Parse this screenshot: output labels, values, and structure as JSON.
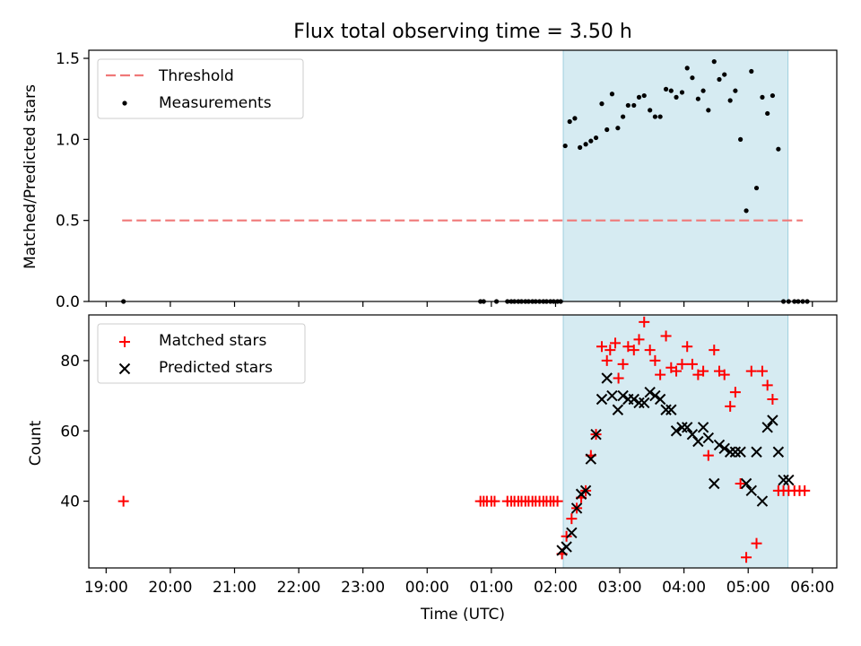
{
  "chart_data": [
    {
      "type": "scatter",
      "title": "Flux total observing time = 3.50 h",
      "xlabel": "",
      "ylabel": "Matched/Predicted stars",
      "xlim": [
        18.73,
        30.38
      ],
      "ylim": [
        0,
        1.55
      ],
      "yticks": [
        0.0,
        0.5,
        1.0,
        1.5
      ],
      "ytick_labels": [
        "0.0",
        "0.5",
        "1.0",
        "1.5"
      ],
      "shaded_span": [
        26.12,
        29.62
      ],
      "legend": {
        "placement": "top-left",
        "entries": [
          "Threshold",
          "Measurements"
        ]
      },
      "threshold": {
        "name": "Threshold",
        "y": 0.5,
        "x": [
          19.25,
          29.85
        ],
        "color": "#f07878"
      },
      "series": [
        {
          "name": "Measurements",
          "color": "#000000",
          "x": [
            19.27,
            24.83,
            24.88,
            25.08,
            25.25,
            25.31,
            25.36,
            25.42,
            25.47,
            25.53,
            25.58,
            25.64,
            25.69,
            25.75,
            25.81,
            25.86,
            25.92,
            25.97,
            26.03,
            26.08,
            26.15,
            26.22,
            26.3,
            26.38,
            26.47,
            26.55,
            26.63,
            26.72,
            26.8,
            26.88,
            26.97,
            27.05,
            27.13,
            27.22,
            27.3,
            27.38,
            27.47,
            27.55,
            27.63,
            27.72,
            27.8,
            27.88,
            27.97,
            28.05,
            28.13,
            28.22,
            28.3,
            28.38,
            28.47,
            28.55,
            28.63,
            28.72,
            28.8,
            28.88,
            28.97,
            29.05,
            29.13,
            29.22,
            29.3,
            29.38,
            29.47,
            29.55,
            29.63,
            29.72,
            29.78,
            29.85,
            29.92
          ],
          "values": [
            0.0,
            0.0,
            0.0,
            0.0,
            0.0,
            0.0,
            0.0,
            0.0,
            0.0,
            0.0,
            0.0,
            0.0,
            0.0,
            0.0,
            0.0,
            0.0,
            0.0,
            0.0,
            0.0,
            0.0,
            0.96,
            1.11,
            1.13,
            0.95,
            0.97,
            0.99,
            1.01,
            1.22,
            1.06,
            1.28,
            1.07,
            1.14,
            1.21,
            1.21,
            1.26,
            1.27,
            1.18,
            1.14,
            1.14,
            1.31,
            1.3,
            1.26,
            1.29,
            1.44,
            1.38,
            1.25,
            1.3,
            1.18,
            1.48,
            1.37,
            1.4,
            1.24,
            1.3,
            1.0,
            0.56,
            1.42,
            0.7,
            1.26,
            1.16,
            1.27,
            0.94,
            0.0,
            0.0,
            0.0,
            0.0,
            0.0,
            0.0
          ]
        }
      ]
    },
    {
      "type": "scatter",
      "xlabel": "Time (UTC)",
      "ylabel": "Count",
      "xlim": [
        18.73,
        30.38
      ],
      "ylim": [
        21,
        93
      ],
      "yticks": [
        40,
        60,
        80
      ],
      "ytick_labels": [
        "40",
        "60",
        "80"
      ],
      "xticks": [
        19,
        20,
        21,
        22,
        23,
        24,
        25,
        26,
        27,
        28,
        29,
        30
      ],
      "xtick_labels": [
        "19:00",
        "20:00",
        "21:00",
        "22:00",
        "23:00",
        "00:00",
        "01:00",
        "02:00",
        "03:00",
        "04:00",
        "05:00",
        "06:00"
      ],
      "shaded_span": [
        26.12,
        29.62
      ],
      "legend": {
        "placement": "top-left",
        "entries": [
          "Matched stars",
          "Predicted stars"
        ]
      },
      "series": [
        {
          "name": "Matched stars",
          "color": "#ff0000",
          "x": [
            19.27,
            24.83,
            24.88,
            24.93,
            25.0,
            25.05,
            25.25,
            25.31,
            25.36,
            25.42,
            25.47,
            25.53,
            25.58,
            25.64,
            25.69,
            25.75,
            25.81,
            25.86,
            25.92,
            25.97,
            26.03,
            26.1,
            26.17,
            26.25,
            26.33,
            26.4,
            26.47,
            26.55,
            26.63,
            26.72,
            26.8,
            26.85,
            26.93,
            26.98,
            27.05,
            27.13,
            27.22,
            27.3,
            27.38,
            27.47,
            27.55,
            27.63,
            27.72,
            27.8,
            27.88,
            27.97,
            28.05,
            28.13,
            28.22,
            28.3,
            28.38,
            28.47,
            28.55,
            28.63,
            28.72,
            28.8,
            28.88,
            28.97,
            29.05,
            29.13,
            29.22,
            29.3,
            29.38,
            29.47,
            29.55,
            29.63,
            29.72,
            29.8,
            29.88
          ],
          "values": [
            40,
            40,
            40,
            40,
            40,
            40,
            40,
            40,
            40,
            40,
            40,
            40,
            40,
            40,
            40,
            40,
            40,
            40,
            40,
            40,
            40,
            25,
            30,
            35,
            38,
            41,
            43,
            53,
            59,
            84,
            80,
            83,
            85,
            75,
            79,
            84,
            83,
            86,
            91,
            83,
            80,
            76,
            87,
            78,
            77,
            79,
            84,
            79,
            76,
            77,
            53,
            83,
            77,
            76,
            67,
            71,
            45,
            24,
            77,
            28,
            77,
            73,
            69,
            43,
            43,
            43,
            43,
            43,
            43
          ]
        },
        {
          "name": "Predicted stars",
          "color": "#000000",
          "x": [
            26.1,
            26.17,
            26.25,
            26.33,
            26.4,
            26.47,
            26.55,
            26.63,
            26.72,
            26.8,
            26.88,
            26.97,
            27.05,
            27.13,
            27.22,
            27.3,
            27.38,
            27.47,
            27.55,
            27.63,
            27.72,
            27.8,
            27.88,
            27.97,
            28.05,
            28.13,
            28.22,
            28.3,
            28.38,
            28.47,
            28.55,
            28.63,
            28.72,
            28.8,
            28.88,
            28.97,
            29.05,
            29.13,
            29.22,
            29.3,
            29.38,
            29.47,
            29.55,
            29.63
          ],
          "values": [
            26,
            27,
            31,
            38,
            42,
            43,
            52,
            59,
            69,
            75,
            70,
            66,
            70,
            69,
            69,
            68,
            68,
            71,
            70,
            69,
            66,
            66,
            60,
            61,
            61,
            59,
            57,
            61,
            58,
            45,
            56,
            55,
            54,
            54,
            54,
            45,
            43,
            54,
            40,
            61,
            63,
            54,
            46,
            46
          ]
        }
      ]
    }
  ]
}
